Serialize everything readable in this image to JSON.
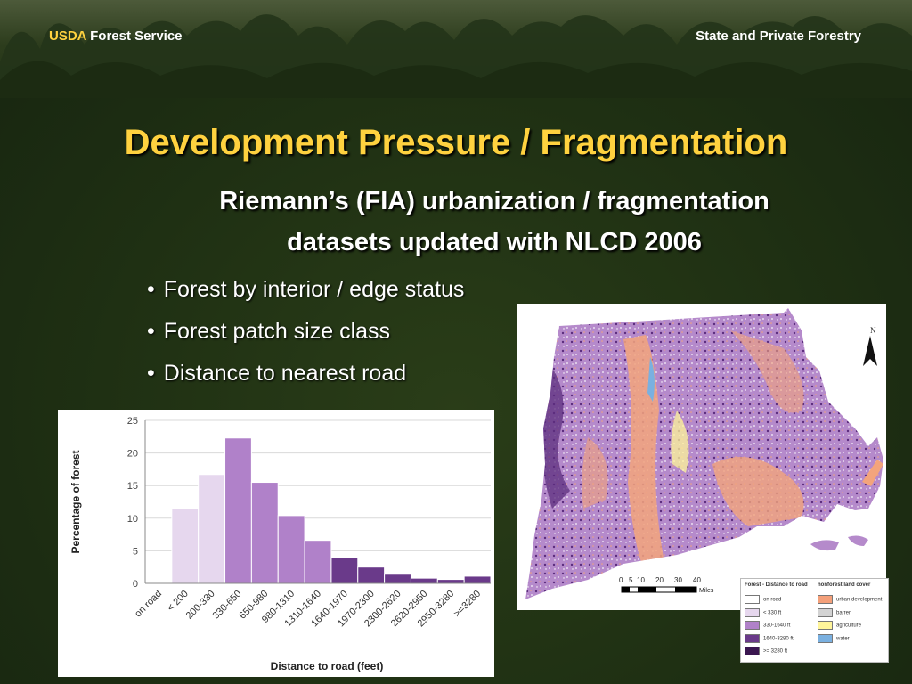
{
  "header": {
    "left_brand": "USDA",
    "left_text": "Forest Service",
    "right_text": "State and Private Forestry"
  },
  "slide": {
    "title": "Development Pressure / Fragmentation",
    "subtitle_line1": "Riemann’s (FIA) urbanization / fragmentation",
    "subtitle_line2": "datasets updated with NLCD 2006",
    "bullets": [
      "Forest by interior / edge status",
      "Forest patch size class",
      "Distance to nearest road"
    ]
  },
  "colors": {
    "title": "#ffd23f",
    "background": "#1f3013",
    "bar_light": "#e6d7ee",
    "bar_mid": "#b081c9",
    "bar_dark": "#6a3a8a"
  },
  "chart_data": {
    "type": "bar",
    "categories": [
      "on road",
      "< 200",
      "200-330",
      "330-650",
      "650-980",
      "980-1310",
      "1310-1640",
      "1640-1970",
      "1970-2300",
      "2300-2620",
      "2620-2950",
      "2950-3280",
      ">=3280"
    ],
    "values": [
      0,
      11.5,
      16.7,
      22.3,
      15.5,
      10.4,
      6.6,
      3.9,
      2.5,
      1.4,
      0.8,
      0.6,
      1.1
    ],
    "color_groups": [
      "light",
      "light",
      "light",
      "mid",
      "mid",
      "mid",
      "mid",
      "dark",
      "dark",
      "dark",
      "dark",
      "dark",
      "dark"
    ],
    "title": "",
    "xlabel": "Distance to road (feet)",
    "ylabel": "Percentage of forest",
    "ylim": [
      0,
      25
    ],
    "yticks": [
      "0",
      "5",
      "10",
      "15",
      "20",
      "25"
    ],
    "grid": true
  },
  "map": {
    "north_label": "N",
    "scale_labels": [
      "0",
      "5",
      "10",
      "20",
      "30",
      "40"
    ],
    "scale_unit": "Miles",
    "legend": {
      "title": "Forest - Distance to road",
      "nonforest_title": "nonforest land cover",
      "forest_items": [
        {
          "label": "on road",
          "color": "#ffffff"
        },
        {
          "label": "< 330 ft",
          "color": "#e6d7ee"
        },
        {
          "label": "330-1640 ft",
          "color": "#b081c9"
        },
        {
          "label": "1640-3280 ft",
          "color": "#6a3a8a"
        },
        {
          "label": ">= 3280 ft",
          "color": "#3a1650"
        }
      ],
      "nonforest_items": [
        {
          "label": "urban development",
          "color": "#f4a07a"
        },
        {
          "label": "barren",
          "color": "#d3d3d3"
        },
        {
          "label": "agriculture",
          "color": "#fff59a"
        },
        {
          "label": "water",
          "color": "#7ab0e0"
        }
      ]
    }
  }
}
